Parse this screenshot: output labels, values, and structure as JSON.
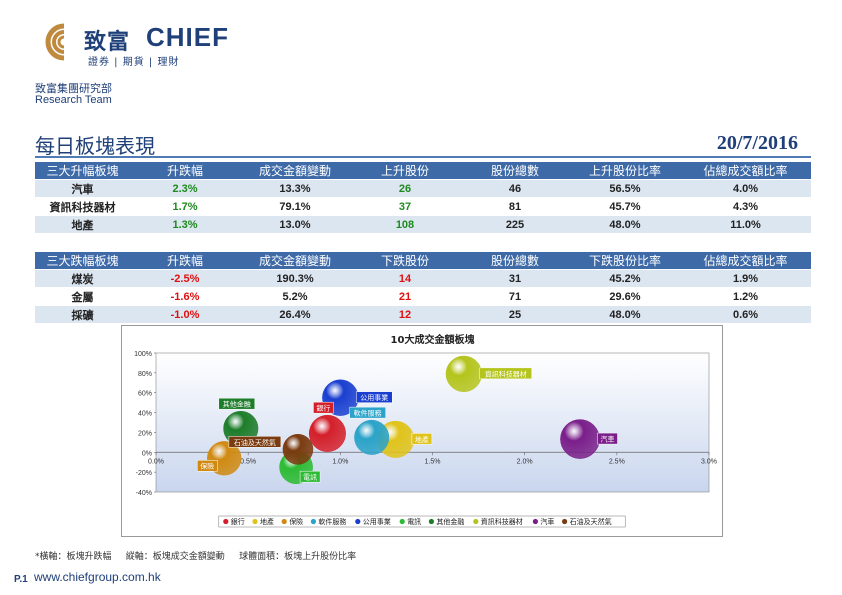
{
  "header": {
    "brand_cn": "致富",
    "brand_en": "CHIEF",
    "brand_sub": "證券 | 期貨 | 理財",
    "dept_cn": "致富集團研究部",
    "dept_en": "Research Team"
  },
  "page": {
    "title": "每日板塊表現",
    "date": "20/7/2016"
  },
  "top_table": {
    "headers": [
      "三大升幅板塊",
      "升跌幅",
      "成交金額變動",
      "上升股份",
      "股份總數",
      "上升股份比率",
      "佔總成交額比率"
    ],
    "rows": [
      [
        "汽車",
        "2.3%",
        "13.3%",
        "26",
        "46",
        "56.5%",
        "4.0%"
      ],
      [
        "資訊科技器材",
        "1.7%",
        "79.1%",
        "37",
        "81",
        "45.7%",
        "4.3%"
      ],
      [
        "地產",
        "1.3%",
        "13.0%",
        "108",
        "225",
        "48.0%",
        "11.0%"
      ]
    ]
  },
  "bottom_table": {
    "headers": [
      "三大跌幅板塊",
      "升跌幅",
      "成交金額變動",
      "下跌股份",
      "股份總數",
      "下跌股份比率",
      "佔總成交額比率"
    ],
    "rows": [
      [
        "煤炭",
        "-2.5%",
        "190.3%",
        "14",
        "31",
        "45.2%",
        "1.9%"
      ],
      [
        "金屬",
        "-1.6%",
        "5.2%",
        "21",
        "71",
        "29.6%",
        "1.2%"
      ],
      [
        "採礦",
        "-1.0%",
        "26.4%",
        "12",
        "25",
        "48.0%",
        "0.6%"
      ]
    ]
  },
  "chart_data": {
    "type": "bubble",
    "title": "10大成交金額板塊",
    "xlim": [
      0,
      3
    ],
    "ylim": [
      -40,
      100
    ],
    "x_ticks": [
      "0.0%",
      "0.5%",
      "1.0%",
      "1.5%",
      "2.0%",
      "2.5%",
      "3.0%"
    ],
    "y_ticks": [
      "100%",
      "80%",
      "60%",
      "40%",
      "20%",
      "0%",
      "-20%",
      "-40%"
    ],
    "legend_position": "bottom",
    "series": [
      {
        "name": "銀行",
        "x": 0.93,
        "y": 19,
        "size": 48,
        "color": "#d41f2a",
        "label_pos": "above"
      },
      {
        "name": "地產",
        "x": 1.3,
        "y": 13,
        "size": 48,
        "color": "#e0c31a",
        "label_pos": "right"
      },
      {
        "name": "保險",
        "x": 0.37,
        "y": -6,
        "size": 40,
        "color": "#d08a12",
        "label_pos": "below-left"
      },
      {
        "name": "軟件服務",
        "x": 1.17,
        "y": 15,
        "size": 42,
        "color": "#2ba3c8",
        "label_pos": "above"
      },
      {
        "name": "公用事業",
        "x": 1.0,
        "y": 55,
        "size": 46,
        "color": "#1a3fd0",
        "label_pos": "right"
      },
      {
        "name": "電訊",
        "x": 0.76,
        "y": -15,
        "size": 38,
        "color": "#2dbb34",
        "label_pos": "below"
      },
      {
        "name": "其他金融",
        "x": 0.46,
        "y": 24,
        "size": 42,
        "color": "#1d7d2a",
        "label_pos": "above"
      },
      {
        "name": "資訊科技器材",
        "x": 1.67,
        "y": 79,
        "size": 45.7,
        "color": "#b4c41c",
        "label_pos": "right"
      },
      {
        "name": "汽車",
        "x": 2.3,
        "y": 13.3,
        "size": 56.5,
        "color": "#7a1f8a",
        "label_pos": "right"
      },
      {
        "name": "石油及天然氣",
        "x": 0.77,
        "y": 3,
        "size": 30,
        "color": "#7a3b10",
        "label_pos": "left"
      }
    ]
  },
  "footer": {
    "note": "*橫軸：板塊升跌幅     縱軸：板塊成交金額變動     球體面積：板塊上升股份比率",
    "page_no": "P.1",
    "website": "www.chiefgroup.com.hk"
  }
}
